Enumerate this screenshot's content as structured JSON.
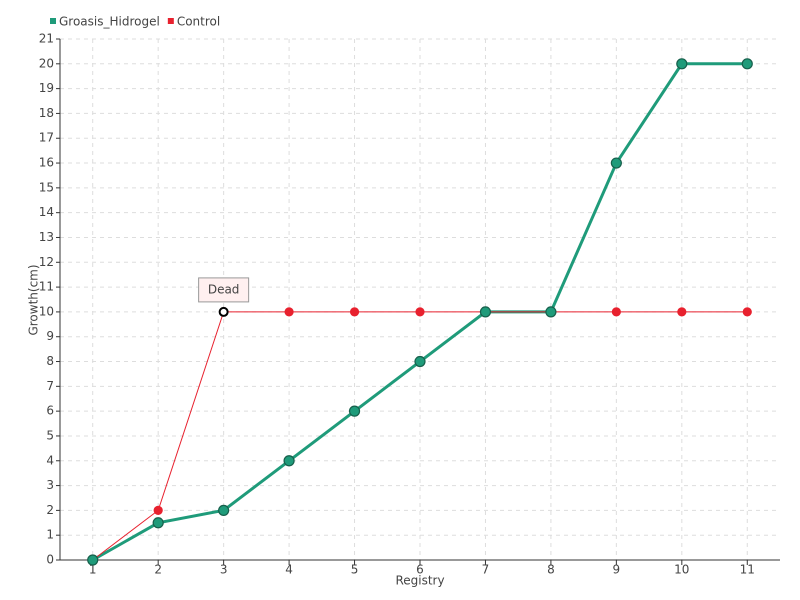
{
  "chart_data": {
    "type": "line",
    "x_label": "Registry",
    "y_label": "Growth(cm)",
    "x": [
      1,
      2,
      3,
      4,
      5,
      6,
      7,
      8,
      9,
      10,
      11
    ],
    "xlim": [
      0.5,
      11.5
    ],
    "xticks": [
      1,
      2,
      3,
      4,
      5,
      6,
      7,
      8,
      9,
      10,
      11
    ],
    "ylim": [
      0,
      21
    ],
    "yticks": [
      0,
      1,
      2,
      3,
      4,
      5,
      6,
      7,
      8,
      9,
      10,
      11,
      12,
      13,
      14,
      15,
      16,
      17,
      18,
      19,
      20,
      21
    ],
    "grid": true,
    "legend": "top-left",
    "series": [
      {
        "name": "Groasis_Hidrogel",
        "color": "#1f9b7a",
        "values": [
          0,
          1.5,
          2,
          4,
          6,
          8,
          10,
          10,
          16,
          20,
          20
        ]
      },
      {
        "name": "Control",
        "color": "#e8212e",
        "values": [
          0,
          2,
          10,
          10,
          10,
          10,
          10,
          10,
          10,
          10,
          10
        ]
      }
    ],
    "annotations": [
      {
        "text": "Dead",
        "x": 3,
        "y": 10
      }
    ]
  }
}
